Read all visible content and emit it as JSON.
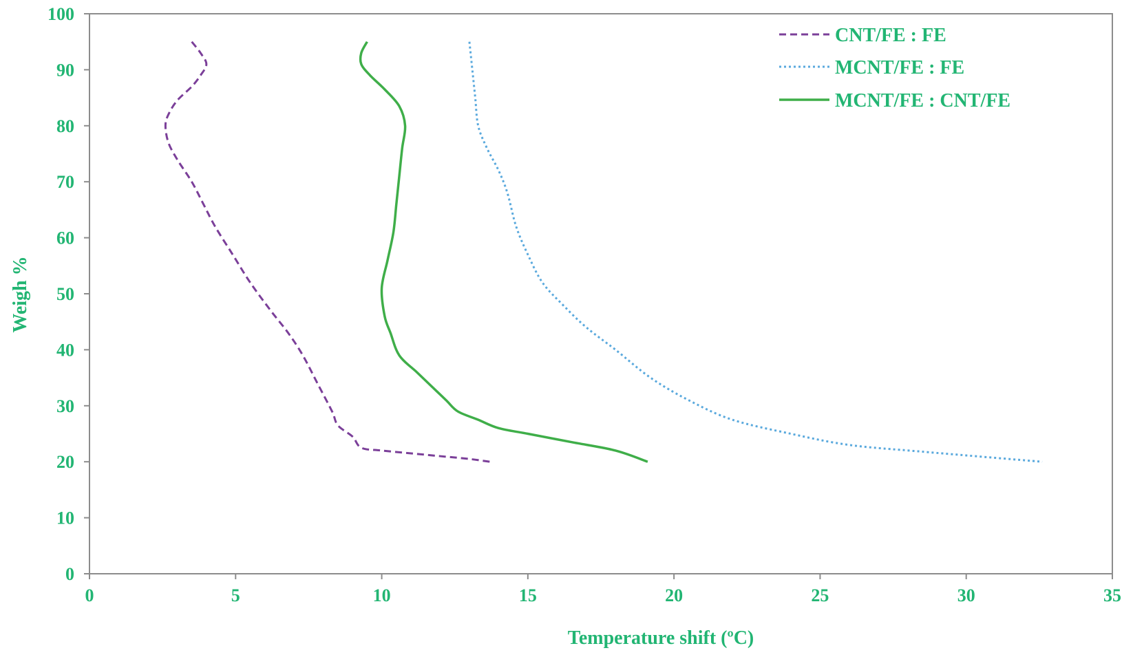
{
  "colors": {
    "text": "#22b573",
    "axis": "#8c8c8c",
    "cnt_fe_fe": "#7b3f99",
    "mcnt_fe_fe": "#5aa9dd",
    "mcnt_fe_cnt_fe": "#3fae49"
  },
  "chart_data": {
    "type": "line",
    "title": "",
    "xlabel": "Temperature shift (ºC)",
    "ylabel": "Weigh %",
    "xlim": [
      0,
      35
    ],
    "ylim": [
      0,
      100
    ],
    "xticks": [
      0,
      5,
      10,
      15,
      20,
      25,
      30,
      35
    ],
    "yticks": [
      0,
      10,
      20,
      30,
      40,
      50,
      60,
      70,
      80,
      90,
      100
    ],
    "grid": false,
    "legend_position": "top-right",
    "series": [
      {
        "name": "CNT/FE : FE",
        "style": "dashed",
        "color_key": "cnt_fe_fe",
        "points": [
          [
            3.5,
            95
          ],
          [
            3.8,
            93
          ],
          [
            4.0,
            91
          ],
          [
            3.8,
            89
          ],
          [
            3.5,
            87
          ],
          [
            3.0,
            84.5
          ],
          [
            2.7,
            82
          ],
          [
            2.6,
            80
          ],
          [
            2.7,
            77
          ],
          [
            3.0,
            74
          ],
          [
            3.5,
            70
          ],
          [
            3.9,
            66
          ],
          [
            4.3,
            62
          ],
          [
            4.9,
            57
          ],
          [
            5.5,
            52
          ],
          [
            6.2,
            47
          ],
          [
            6.8,
            43
          ],
          [
            7.3,
            39
          ],
          [
            7.8,
            34
          ],
          [
            8.3,
            29
          ],
          [
            8.5,
            26.5
          ],
          [
            9.0,
            24.5
          ],
          [
            9.3,
            22.5
          ],
          [
            10.0,
            22
          ],
          [
            11.0,
            21.5
          ],
          [
            12.0,
            21
          ],
          [
            13.0,
            20.5
          ],
          [
            13.7,
            20
          ]
        ]
      },
      {
        "name": "MCNT/FE : FE",
        "style": "dotted",
        "color_key": "mcnt_fe_fe",
        "points": [
          [
            13.0,
            95
          ],
          [
            13.1,
            90
          ],
          [
            13.2,
            85
          ],
          [
            13.3,
            80
          ],
          [
            13.6,
            76
          ],
          [
            14.0,
            72
          ],
          [
            14.3,
            68
          ],
          [
            14.6,
            62
          ],
          [
            15.0,
            57
          ],
          [
            15.5,
            52
          ],
          [
            16.2,
            48
          ],
          [
            17.0,
            44
          ],
          [
            18.0,
            40
          ],
          [
            19.2,
            35
          ],
          [
            20.5,
            31
          ],
          [
            22.0,
            27.5
          ],
          [
            24.0,
            25
          ],
          [
            26.0,
            23
          ],
          [
            28.5,
            21.8
          ],
          [
            32.6,
            20
          ]
        ]
      },
      {
        "name": "MCNT/FE : CNT/FE",
        "style": "solid",
        "color_key": "mcnt_fe_cnt_fe",
        "points": [
          [
            9.5,
            95
          ],
          [
            9.3,
            93
          ],
          [
            9.3,
            91
          ],
          [
            9.6,
            89
          ],
          [
            10.1,
            86.5
          ],
          [
            10.6,
            83.5
          ],
          [
            10.8,
            80
          ],
          [
            10.7,
            76
          ],
          [
            10.6,
            71
          ],
          [
            10.5,
            66
          ],
          [
            10.4,
            61
          ],
          [
            10.2,
            56
          ],
          [
            10.0,
            51
          ],
          [
            10.1,
            46
          ],
          [
            10.3,
            43
          ],
          [
            10.6,
            39
          ],
          [
            11.2,
            36
          ],
          [
            11.6,
            34
          ],
          [
            12.2,
            31
          ],
          [
            12.6,
            29
          ],
          [
            13.3,
            27.5
          ],
          [
            14.0,
            26
          ],
          [
            15.0,
            25
          ],
          [
            16.5,
            23.5
          ],
          [
            18.0,
            22
          ],
          [
            19.1,
            20
          ]
        ]
      }
    ]
  }
}
